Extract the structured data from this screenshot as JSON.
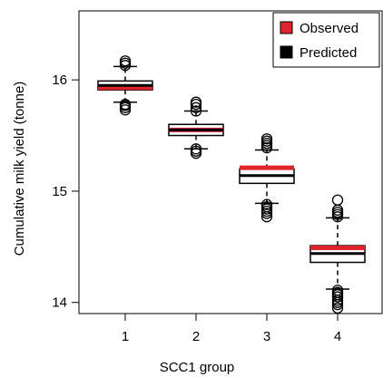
{
  "chart_data": {
    "type": "boxplot",
    "xlabel": "SCC1 group",
    "ylabel": "Cumulative milk yield (tonne)",
    "categories": [
      "1",
      "2",
      "3",
      "4"
    ],
    "ylim": [
      13.9,
      16.62
    ],
    "yticks": [
      14,
      15,
      16
    ],
    "grid": false,
    "legend": {
      "placement": "top-right",
      "entries": [
        {
          "name": "Observed",
          "color": "#e0242c"
        },
        {
          "name": "Predicted",
          "color": "#000000"
        }
      ]
    },
    "series": [
      {
        "name": "Observed",
        "color": "#e0242c",
        "medians": [
          15.93,
          15.55,
          15.21,
          14.49
        ]
      },
      {
        "name": "Predicted",
        "color": "#000000",
        "boxes": [
          {
            "category": "1",
            "whisker_low": 15.8,
            "q1": 15.91,
            "median": 15.95,
            "q3": 15.99,
            "whisker_high": 16.12,
            "outliers": [
              15.73,
              15.75,
              15.77,
              15.78,
              16.13,
              16.15,
              16.17
            ]
          },
          {
            "category": "2",
            "whisker_low": 15.38,
            "q1": 15.5,
            "median": 15.55,
            "q3": 15.6,
            "whisker_high": 15.72,
            "outliers": [
              15.34,
              15.36,
              15.38,
              15.72,
              15.75,
              15.78,
              15.8
            ]
          },
          {
            "category": "3",
            "whisker_low": 14.89,
            "q1": 15.07,
            "median": 15.14,
            "q3": 15.2,
            "whisker_high": 15.37,
            "outliers": [
              14.77,
              14.8,
              14.82,
              14.84,
              14.86,
              14.88,
              15.39,
              15.41,
              15.43,
              15.45,
              15.47
            ]
          },
          {
            "category": "4",
            "whisker_low": 14.12,
            "q1": 14.36,
            "median": 14.44,
            "q3": 14.51,
            "whisker_high": 14.76,
            "outliers": [
              13.95,
              13.98,
              14.0,
              14.02,
              14.05,
              14.07,
              14.09,
              14.11,
              14.77,
              14.79,
              14.81,
              14.83,
              14.92
            ]
          }
        ]
      }
    ]
  }
}
